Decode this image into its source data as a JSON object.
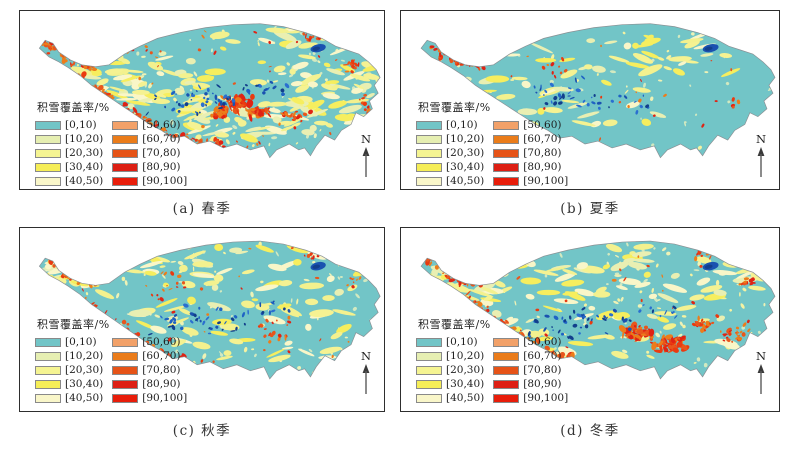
{
  "figure": {
    "north_label": "N",
    "panels": [
      {
        "id": "a",
        "caption": "(a) 春季",
        "season": "spring"
      },
      {
        "id": "b",
        "caption": "(b) 夏季",
        "season": "summer"
      },
      {
        "id": "c",
        "caption": "(c) 秋季",
        "season": "autumn"
      },
      {
        "id": "d",
        "caption": "(d) 冬季",
        "season": "winter"
      }
    ],
    "legend": {
      "title": "积雪覆盖率/%",
      "items": [
        {
          "label": "[0,10)",
          "color": "#72c5c7"
        },
        {
          "label": "[10,20)",
          "color": "#e6efb2"
        },
        {
          "label": "[20,30)",
          "color": "#f5f492"
        },
        {
          "label": "[30,40)",
          "color": "#f6ee57"
        },
        {
          "label": "[40,50)",
          "color": "#f9f6c9"
        },
        {
          "label": "[50,60)",
          "color": "#f2a169"
        },
        {
          "label": "[60,70)",
          "color": "#ea7c1a"
        },
        {
          "label": "[70,80)",
          "color": "#e65317"
        },
        {
          "label": "[80,90)",
          "color": "#dd1f14"
        },
        {
          "label": "[90,100]",
          "color": "#e81d0a"
        }
      ]
    },
    "colors": {
      "map_base": "#72c5c7",
      "outline": "#8a9094",
      "frame": "#2e2e2e",
      "arrow": "#4a4a4a",
      "caption_text": "#333333",
      "speckle": [
        "#eef2b6",
        "#f4f2a2",
        "#d2e9c0"
      ],
      "yellow": [
        "#f3f18e",
        "#e9efb2",
        "#f6ee5e",
        "#f9f6c8",
        "#f5f292"
      ],
      "red": [
        "#df2314",
        "#e8561c",
        "#ea3a10",
        "#ec7c1a"
      ],
      "lake": [
        "#1a52b0",
        "#1f63c4",
        "#123f8c",
        "#2a6fd0"
      ]
    }
  },
  "map_data": {
    "type": "map",
    "variable": "积雪覆盖率/%",
    "classes": [
      "[0,10)",
      "[10,20)",
      "[20,30)",
      "[30,40)",
      "[40,50)",
      "[50,60)",
      "[60,70)",
      "[70,80)",
      "[80,90)",
      "[90,100]"
    ],
    "seasons": [
      "春季",
      "夏季",
      "秋季",
      "冬季"
    ],
    "chains": {
      "arm": [
        [
          24,
          34
        ],
        [
          34,
          36
        ],
        [
          44,
          46
        ],
        [
          56,
          52
        ],
        [
          70,
          56
        ],
        [
          84,
          56
        ]
      ],
      "sw": [
        [
          62,
          66
        ],
        [
          74,
          76
        ],
        [
          86,
          84
        ],
        [
          98,
          92
        ],
        [
          110,
          100
        ],
        [
          122,
          108
        ],
        [
          134,
          116
        ],
        [
          146,
          122
        ],
        [
          158,
          130
        ],
        [
          170,
          128
        ]
      ],
      "south": [
        [
          170,
          128
        ],
        [
          183,
          134
        ],
        [
          196,
          133
        ],
        [
          210,
          138
        ],
        [
          224,
          136
        ],
        [
          238,
          140
        ],
        [
          252,
          136
        ]
      ]
    },
    "gen": {
      "a": {
        "yellow": {
          "count": 200,
          "regions": [
            [
              78,
              18,
              285,
              55
            ],
            [
              55,
              58,
              135,
              48
            ],
            [
              285,
              55,
              80,
              70
            ],
            [
              175,
              88,
              115,
              45
            ]
          ]
        },
        "speckle": 130,
        "red": {
          "chains": [
            {
              "name": "arm",
              "n": 45,
              "s": 3
            },
            {
              "name": "sw",
              "n": 60,
              "s": 3
            },
            {
              "name": "south",
              "n": 28,
              "s": 2.6
            }
          ],
          "clusters": [
            [
              225,
              95,
              22,
              11,
              60,
              4
            ],
            [
              248,
              103,
              14,
              7,
              35,
              3.5
            ],
            [
              205,
              105,
              12,
              6,
              20,
              3
            ],
            [
              285,
              108,
              18,
              8,
              18,
              2.5
            ],
            [
              302,
              27,
              13,
              5,
              9,
              2.2
            ],
            [
              344,
              56,
              10,
              9,
              12,
              2.2
            ],
            [
              356,
              96,
              8,
              12,
              12,
              2.2
            ],
            [
              120,
              40,
              30,
              12,
              12,
              2
            ]
          ],
          "scatter": 45
        },
        "lakes": {
          "clusters": [
            [
              185,
              92,
              60,
              18,
              45
            ],
            [
              248,
              80,
              40,
              14,
              14
            ]
          ],
          "big": [
            308,
            38,
            8,
            4
          ]
        }
      },
      "b": {
        "yellow": {
          "count": 70,
          "regions": [
            [
              55,
              30,
              180,
              50
            ],
            [
              235,
              25,
              110,
              38
            ],
            [
              70,
              78,
              190,
              45
            ]
          ]
        },
        "speckle": 60,
        "red": {
          "chains": [
            {
              "name": "arm",
              "n": 28,
              "s": 2.8
            }
          ],
          "clusters": [
            [
              78,
              48,
              14,
              8,
              18,
              3
            ],
            [
              150,
              55,
              40,
              15,
              10,
              1.8
            ],
            [
              230,
              90,
              40,
              20,
              8,
              1.6
            ],
            [
              330,
              95,
              10,
              8,
              5,
              1.8
            ]
          ],
          "scatter": 15
        },
        "lakes": {
          "clusters": [
            [
              172,
              86,
              55,
              20,
              30
            ],
            [
              235,
              95,
              30,
              12,
              10
            ]
          ],
          "big": [
            308,
            38,
            8,
            4
          ]
        }
      },
      "c": {
        "yellow": {
          "count": 150,
          "regions": [
            [
              68,
              18,
              292,
              55
            ],
            [
              80,
              70,
              255,
              60
            ],
            [
              25,
              30,
              60,
              26
            ]
          ]
        },
        "speckle": 110,
        "red": {
          "chains": [
            {
              "name": "arm",
              "n": 22,
              "s": 2.5
            },
            {
              "name": "sw",
              "n": 26,
              "s": 2.5
            }
          ],
          "clusters": [
            [
              302,
              27,
              13,
              5,
              7,
              2
            ],
            [
              344,
              56,
              10,
              9,
              9,
              2
            ],
            [
              260,
              100,
              30,
              15,
              18,
              2.2
            ],
            [
              150,
              60,
              50,
              20,
              14,
              1.8
            ]
          ],
          "scatter": 35
        },
        "lakes": {
          "clusters": [
            [
              185,
              92,
              60,
              18,
              38
            ],
            [
              250,
              80,
              35,
              12,
              10
            ]
          ],
          "big": [
            308,
            38,
            8,
            4
          ]
        }
      },
      "d": {
        "yellow": {
          "count": 170,
          "regions": [
            [
              68,
              18,
              292,
              52
            ],
            [
              68,
              64,
              265,
              66
            ],
            [
              28,
              34,
              62,
              40
            ]
          ]
        },
        "speckle": 120,
        "red": {
          "chains": [
            {
              "name": "arm",
              "n": 30,
              "s": 2.8
            },
            {
              "name": "sw",
              "n": 46,
              "s": 3
            }
          ],
          "clusters": [
            [
              235,
              105,
              18,
              9,
              45,
              4
            ],
            [
              268,
              115,
              20,
              9,
              50,
              4
            ],
            [
              300,
              95,
              12,
              8,
              15,
              2.5
            ],
            [
              330,
              105,
              18,
              10,
              22,
              2.5
            ],
            [
              302,
              27,
              13,
              5,
              8,
              2.2
            ],
            [
              344,
              56,
              10,
              9,
              12,
              2.2
            ]
          ],
          "scatter": 40
        },
        "lakes": {
          "clusters": [
            [
              178,
              95,
              60,
              20,
              40
            ],
            [
              245,
              85,
              35,
              12,
              10
            ]
          ],
          "big": [
            308,
            38,
            8,
            4
          ]
        }
      }
    }
  }
}
